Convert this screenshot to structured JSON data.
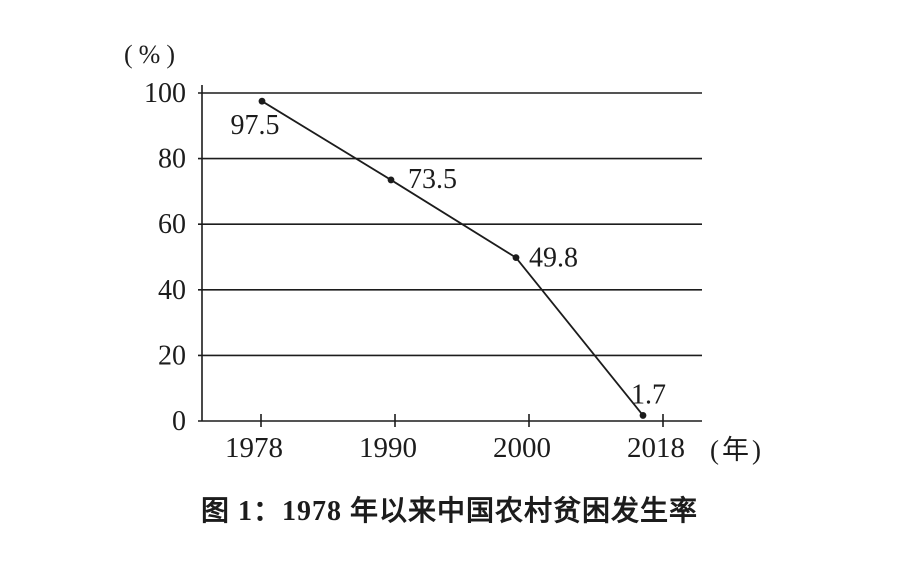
{
  "page": {
    "background": "#ffffff",
    "ink_color": "#1c1c1c"
  },
  "chart_data": {
    "type": "line",
    "title": "图 1：1978 年以来中国农村贫困发生率",
    "categories": [
      "1978",
      "1990",
      "2000",
      "2018"
    ],
    "x": [
      1978,
      1990,
      2000,
      2018
    ],
    "values": [
      97.5,
      73.5,
      49.8,
      1.7
    ],
    "point_labels": [
      "97.5",
      "73.5",
      "49.8",
      "1.7"
    ],
    "xlabel": "(年)",
    "ylabel": "(%)",
    "ylim": [
      0,
      100
    ],
    "yticks": [
      0,
      20,
      40,
      60,
      80,
      100
    ],
    "grid": true,
    "legend": "none",
    "line_color": "#1c1c1c",
    "marker": "filled-circle",
    "marker_color": "#1c1c1c"
  }
}
